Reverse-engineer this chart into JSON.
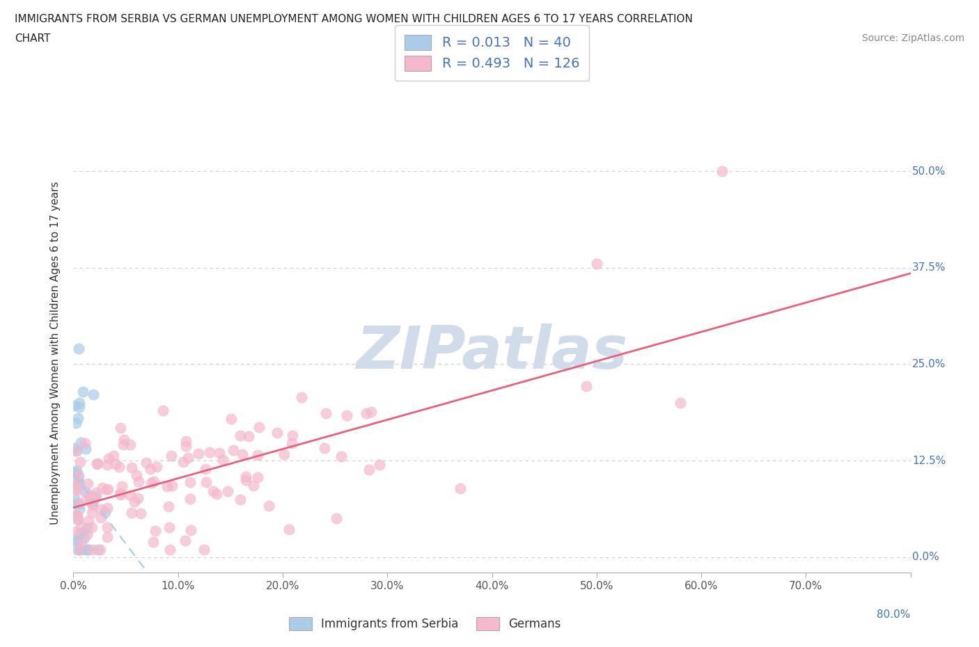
{
  "title_line1": "IMMIGRANTS FROM SERBIA VS GERMAN UNEMPLOYMENT AMONG WOMEN WITH CHILDREN AGES 6 TO 17 YEARS CORRELATION",
  "title_line2": "CHART",
  "source_text": "Source: ZipAtlas.com",
  "ylabel": "Unemployment Among Women with Children Ages 6 to 17 years",
  "xlim": [
    0.0,
    0.8
  ],
  "ylim": [
    -0.02,
    0.55
  ],
  "xtick_positions": [
    0.0,
    0.1,
    0.2,
    0.3,
    0.4,
    0.5,
    0.6,
    0.7,
    0.8
  ],
  "xtick_labels": [
    "0.0%",
    "",
    "",
    "",
    "",
    "",
    "",
    "",
    ""
  ],
  "ytick_positions": [
    0.0,
    0.125,
    0.25,
    0.375,
    0.5
  ],
  "ytick_labels": [
    "0.0%",
    "12.5%",
    "25.0%",
    "37.5%",
    "50.0%"
  ],
  "legend1_label": "Immigrants from Serbia",
  "legend2_label": "Germans",
  "R1": 0.013,
  "N1": 40,
  "R2": 0.493,
  "N2": 126,
  "color_serbia": "#aacce8",
  "color_german": "#f5b8cc",
  "trendline_color_serbia": "#aacce8",
  "trendline_color_german": "#e8607a",
  "watermark_color": "#d0dcea",
  "axis_color": "#999999",
  "grid_color": "#cccccc",
  "right_label_color": "#4472c4",
  "title_color": "#333333",
  "legend_text_color": "#4472c4"
}
